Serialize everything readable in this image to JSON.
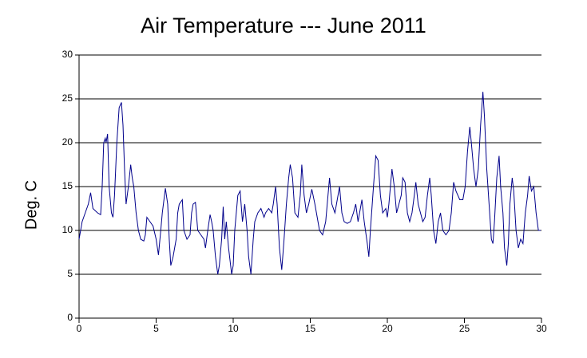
{
  "chart_data": {
    "type": "line",
    "title": "Air Temperature --- June 2011",
    "ylabel": "Deg. C",
    "x": [
      0,
      0.2,
      0.4,
      0.6,
      0.75,
      0.9,
      1.2,
      1.4,
      1.5,
      1.6,
      1.7,
      1.75,
      1.85,
      1.95,
      2.1,
      2.2,
      2.3,
      2.45,
      2.6,
      2.75,
      2.85,
      2.95,
      3.05,
      3.2,
      3.35,
      3.45,
      3.55,
      3.7,
      3.85,
      4.0,
      4.2,
      4.3,
      4.4,
      4.6,
      4.8,
      5.0,
      5.15,
      5.3,
      5.4,
      5.6,
      5.75,
      5.85,
      5.95,
      6.1,
      6.2,
      6.3,
      6.4,
      6.5,
      6.7,
      6.8,
      7.0,
      7.2,
      7.3,
      7.4,
      7.55,
      7.7,
      7.9,
      8.1,
      8.2,
      8.35,
      8.5,
      8.6,
      8.7,
      8.85,
      9.0,
      9.1,
      9.25,
      9.35,
      9.45,
      9.55,
      9.7,
      9.9,
      10.0,
      10.1,
      10.3,
      10.45,
      10.6,
      10.75,
      10.9,
      11.0,
      11.15,
      11.3,
      11.4,
      11.6,
      11.8,
      12.0,
      12.1,
      12.3,
      12.5,
      12.6,
      12.75,
      12.85,
      13.0,
      13.15,
      13.3,
      13.45,
      13.6,
      13.7,
      13.85,
      14.0,
      14.2,
      14.35,
      14.45,
      14.6,
      14.75,
      14.9,
      15.1,
      15.3,
      15.5,
      15.6,
      15.8,
      16.0,
      16.15,
      16.25,
      16.4,
      16.6,
      16.8,
      16.9,
      17.05,
      17.2,
      17.4,
      17.6,
      17.8,
      17.95,
      18.1,
      18.35,
      18.5,
      18.7,
      18.8,
      18.9,
      19.1,
      19.25,
      19.4,
      19.55,
      19.7,
      19.9,
      20.0,
      20.1,
      20.3,
      20.45,
      20.6,
      20.75,
      20.9,
      21.0,
      21.15,
      21.3,
      21.45,
      21.6,
      21.75,
      21.85,
      22.0,
      22.15,
      22.3,
      22.45,
      22.6,
      22.75,
      22.85,
      23.0,
      23.15,
      23.3,
      23.45,
      23.6,
      23.8,
      24.0,
      24.15,
      24.3,
      24.45,
      24.7,
      24.9,
      25.05,
      25.2,
      25.35,
      25.45,
      25.6,
      25.75,
      25.9,
      26.05,
      26.2,
      26.3,
      26.45,
      26.6,
      26.75,
      26.85,
      26.95,
      27.1,
      27.25,
      27.35,
      27.5,
      27.6,
      27.75,
      27.85,
      27.95,
      28.1,
      28.2,
      28.35,
      28.5,
      28.65,
      28.8,
      28.95,
      29.1,
      29.2,
      29.35,
      29.5,
      29.65,
      29.8,
      29.95
    ],
    "series": [
      {
        "name": "Air Temperature",
        "color": "#00008b",
        "values": [
          9,
          11,
          12,
          13,
          14.3,
          12.5,
          12,
          11.8,
          15,
          20,
          20.5,
          20,
          21,
          15,
          12,
          11.5,
          14,
          20,
          24,
          24.6,
          22,
          17,
          13,
          15,
          17.5,
          16,
          15,
          12,
          10,
          9,
          8.8,
          9.5,
          11.5,
          11,
          10.5,
          9,
          7.2,
          10,
          12,
          14.8,
          13,
          9,
          6,
          7,
          8,
          9,
          12,
          13,
          13.5,
          10,
          9,
          9.5,
          12,
          13,
          13.2,
          10,
          9.5,
          9,
          8,
          10,
          11.8,
          11,
          10,
          7,
          5,
          6,
          9,
          12.7,
          9,
          11,
          8,
          5,
          6,
          10,
          14,
          14.5,
          11,
          13,
          10,
          7,
          5,
          9,
          11,
          12,
          12.5,
          11.5,
          12,
          12.5,
          12,
          13,
          15,
          13,
          8,
          5.5,
          9,
          13,
          16,
          17.5,
          16,
          12,
          11.5,
          14,
          17.5,
          14,
          12,
          13,
          14.7,
          13,
          11,
          10,
          9.5,
          11,
          14,
          16,
          13,
          12,
          14,
          15,
          12,
          11,
          10.8,
          11,
          12,
          13,
          11,
          13.5,
          11,
          8.5,
          7,
          10,
          15,
          18.5,
          18,
          14,
          12,
          12.5,
          11.5,
          13,
          17,
          15,
          12,
          13,
          14,
          16,
          15.5,
          12,
          11,
          12,
          14,
          15.5,
          13,
          12,
          11,
          11.5,
          14,
          16,
          14,
          10,
          8.5,
          11,
          12,
          10,
          9.5,
          10,
          12,
          15.5,
          14.5,
          13.5,
          13.5,
          15,
          19,
          21.8,
          20,
          17,
          15,
          17,
          22,
          25.8,
          23,
          17,
          13,
          9,
          8.5,
          11,
          16,
          18.5,
          15,
          12,
          8,
          6,
          8.5,
          13,
          16,
          14.5,
          10,
          8,
          9,
          8.5,
          12,
          14,
          16.2,
          14.5,
          15,
          12,
          10,
          10
        ]
      }
    ],
    "xlim": [
      0,
      30
    ],
    "xticks": [
      0,
      5,
      10,
      15,
      20,
      25,
      30
    ],
    "ylim": [
      0,
      30
    ],
    "yticks": [
      0,
      5,
      10,
      15,
      20,
      25,
      30
    ],
    "grid": true
  }
}
